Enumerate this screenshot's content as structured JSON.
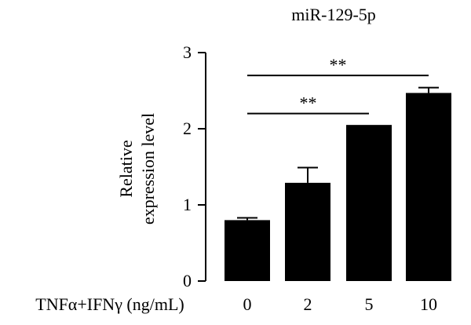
{
  "chart_data": {
    "type": "bar",
    "title": "miR-129-5p",
    "ylabel_lines": [
      "Relative",
      "expression level"
    ],
    "xlabel_prefix": "TNFα+IFNγ (ng/mL)",
    "categories": [
      "0",
      "2",
      "5",
      "10"
    ],
    "values": [
      0.8,
      1.29,
      2.05,
      2.47
    ],
    "errors": [
      0.03,
      0.2,
      0.0,
      0.07
    ],
    "ylim": [
      0,
      3
    ],
    "yticks": [
      "0",
      "1",
      "2",
      "3"
    ],
    "bar_color": "#000000",
    "significance": [
      {
        "from": "0",
        "to": "5",
        "label": "**"
      },
      {
        "from": "0",
        "to": "10",
        "label": "**"
      }
    ]
  }
}
